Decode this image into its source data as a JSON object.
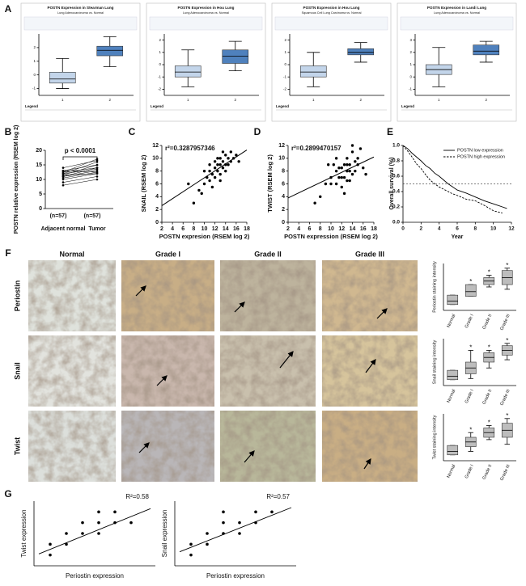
{
  "panel_labels": [
    "A",
    "B",
    "C",
    "D",
    "E",
    "F",
    "G"
  ],
  "panel_a": [
    {
      "title": "POSTN Expression in Stearman Lung",
      "subtitle": "Lung Adenocarcinoma vs. Normal",
      "categories": [
        "1",
        "2"
      ],
      "ylim": [
        -1.5,
        3
      ],
      "yticks": [
        -1,
        0,
        1,
        2
      ],
      "boxes": [
        [
          -1.0,
          -0.6,
          -0.3,
          0.2,
          1.2
        ],
        [
          0.6,
          1.4,
          1.8,
          2.1,
          2.8
        ]
      ],
      "legend": "Legend"
    },
    {
      "title": "POSTN Expression in Hou Lung",
      "subtitle": "Lung Adenocarcinoma vs. Normal",
      "categories": [
        "1",
        "2"
      ],
      "ylim": [
        -2.5,
        2.5
      ],
      "yticks": [
        -2,
        -1,
        0,
        1,
        2
      ],
      "boxes": [
        [
          -1.8,
          -1.0,
          -0.6,
          -0.1,
          1.2
        ],
        [
          -0.5,
          0.1,
          0.7,
          1.2,
          1.9
        ]
      ],
      "legend": "Legend"
    },
    {
      "title": "POSTN Expression in Hou Lung",
      "subtitle": "Squamous Cell Lung Carcinoma vs. Normal",
      "categories": [
        "1",
        "2"
      ],
      "ylim": [
        -2.5,
        2.5
      ],
      "yticks": [
        -2,
        -1,
        0,
        1,
        2
      ],
      "boxes": [
        [
          -1.8,
          -1.0,
          -0.6,
          -0.1,
          1.0
        ],
        [
          0.2,
          0.8,
          1.0,
          1.3,
          1.8
        ]
      ],
      "legend": "Legend"
    },
    {
      "title": "POSTN Expression in Landi Lung",
      "subtitle": "Lung Adenocarcinoma vs. Normal",
      "categories": [
        "1",
        "2"
      ],
      "ylim": [
        -1.5,
        3.5
      ],
      "yticks": [
        -1,
        0,
        1,
        2,
        3
      ],
      "boxes": [
        [
          -0.8,
          0.2,
          0.6,
          1.0,
          2.4
        ],
        [
          1.2,
          1.8,
          2.1,
          2.6,
          2.9
        ]
      ],
      "legend": "Legend"
    }
  ],
  "panel_b": {
    "annotation": "p < 0.0001",
    "ylabel": "POSTN relative expression (RSEM log 2)",
    "categories": [
      "Adjacent normal",
      "Tumor"
    ],
    "counts": [
      "(n=57)",
      "(n=57)"
    ],
    "ylim": [
      0,
      20
    ],
    "yticks": [
      0,
      5,
      10,
      15,
      20
    ],
    "normal": [
      9,
      10,
      10.5,
      11,
      11,
      11.5,
      11.5,
      12,
      12,
      12.5,
      12.5,
      13,
      13,
      14,
      8
    ],
    "tumor": [
      11,
      12,
      12.5,
      13,
      14,
      12,
      15,
      13.5,
      16,
      14,
      17,
      15,
      12.5,
      16.5,
      10
    ]
  },
  "panel_c": {
    "annotation": "r²=0.3287957346",
    "xlabel": "POSTN expresion (RSEM log 2)",
    "ylabel": "SNAIL (RSEM log 2)",
    "xlim": [
      2,
      18
    ],
    "ylim": [
      0,
      12
    ],
    "xticks": [
      2,
      4,
      6,
      8,
      10,
      12,
      14,
      16,
      18
    ],
    "yticks": [
      0,
      2,
      4,
      6,
      8,
      10,
      12
    ],
    "x": [
      8,
      9,
      10,
      10.5,
      11,
      11,
      11.5,
      12,
      12,
      12.5,
      12.5,
      13,
      13,
      13,
      13.5,
      13.5,
      14,
      14,
      14.5,
      14.5,
      15,
      15,
      15.5,
      16,
      9.5,
      10,
      11,
      12,
      13,
      14,
      11.5,
      12.5,
      13.5,
      7,
      16.5
    ],
    "y": [
      3,
      5,
      6,
      7,
      6.5,
      8,
      7.5,
      7,
      8.5,
      8,
      9,
      7.5,
      9,
      10,
      8.5,
      9.5,
      9,
      10.5,
      9,
      10,
      9.5,
      11,
      10,
      10.5,
      4.5,
      8,
      9,
      9.5,
      6.5,
      8,
      5.5,
      10,
      11,
      6,
      9.5
    ],
    "fit": [
      [
        2,
        2.6
      ],
      [
        18,
        11.3
      ]
    ]
  },
  "panel_d": {
    "annotation": "r²=0.2899470157",
    "xlabel": "POSTN expression (RSEM log 2)",
    "ylabel": "TWIST (RSEM log 2)",
    "xlim": [
      2,
      18
    ],
    "ylim": [
      0,
      12
    ],
    "xticks": [
      2,
      4,
      6,
      8,
      10,
      12,
      14,
      16,
      18
    ],
    "yticks": [
      0,
      2,
      4,
      6,
      8,
      10,
      12
    ],
    "x": [
      8,
      9,
      10,
      10.5,
      11,
      11,
      11.5,
      12,
      12,
      12.5,
      12.5,
      13,
      13,
      13,
      13.5,
      13.5,
      14,
      14,
      14.5,
      14.5,
      15,
      15,
      15.5,
      16,
      9.5,
      10,
      11,
      12,
      13,
      14,
      11.5,
      12.5,
      13.5,
      7,
      16.5
    ],
    "y": [
      4,
      6,
      7,
      9,
      6,
      8,
      7,
      8.5,
      5.5,
      9,
      7,
      8,
      10,
      6.5,
      9,
      8,
      11,
      7.5,
      9.5,
      8,
      10,
      9,
      11.5,
      8.5,
      9,
      6,
      10,
      7,
      9,
      12,
      8.5,
      4.5,
      6.5,
      3,
      7.5
    ],
    "fit": [
      [
        2,
        3.8
      ],
      [
        18,
        10.2
      ]
    ]
  },
  "panel_e": {
    "xlabel": "Year",
    "ylabel": "Overall survival (%)",
    "xlim": [
      0,
      12
    ],
    "ylim": [
      0,
      1
    ],
    "xticks": [
      0,
      2,
      4,
      6,
      8,
      10,
      12
    ],
    "yticks": [
      {
        "value": 0,
        "label": "0.0"
      },
      0.2,
      0.4,
      0.6,
      0.8,
      {
        "value": 1,
        "label": "1.0"
      }
    ],
    "reference_line": 0.5,
    "series": [
      {
        "name": "POSTN low expression",
        "x": [
          0,
          0.5,
          1,
          1.5,
          2,
          2.5,
          3,
          3.5,
          4,
          4.5,
          5,
          5.5,
          6,
          7,
          8,
          9,
          10,
          11,
          11.5
        ],
        "values": [
          1,
          0.96,
          0.9,
          0.85,
          0.8,
          0.74,
          0.7,
          0.64,
          0.6,
          0.55,
          0.5,
          0.46,
          0.42,
          0.38,
          0.33,
          0.28,
          0.24,
          0.2,
          0.18
        ]
      },
      {
        "name": "POSTN high expression",
        "x": [
          0,
          0.5,
          1,
          1.5,
          2,
          2.5,
          3,
          3.5,
          4,
          4.5,
          5,
          5.5,
          6,
          7,
          8,
          9,
          10,
          11
        ],
        "values": [
          1,
          0.93,
          0.85,
          0.76,
          0.7,
          0.62,
          0.55,
          0.5,
          0.46,
          0.43,
          0.4,
          0.37,
          0.35,
          0.3,
          0.28,
          0.22,
          0.15,
          0.12
        ]
      }
    ]
  },
  "panel_f": {
    "columns": [
      "Normal",
      "Grade I",
      "Grade II",
      "Grade III"
    ],
    "ylim": [
      0,
      4
    ],
    "rows": [
      {
        "name": "Periostin",
        "ylabel": "Periostin staining intensity",
        "boxes": [
          [
            0.5,
            0.5,
            0.8,
            1.3,
            1.3
          ],
          [
            1.2,
            1.2,
            1.6,
            2.2,
            2.2
          ],
          [
            2.0,
            2.2,
            2.5,
            2.8,
            3.0
          ],
          [
            1.8,
            2.2,
            2.8,
            3.4,
            3.6
          ]
        ],
        "significance": [
          null,
          "*",
          "*",
          "*"
        ]
      },
      {
        "name": "Snail",
        "ylabel": "Snail staining intensity",
        "boxes": [
          [
            0.5,
            0.5,
            0.8,
            1.3,
            1.3
          ],
          [
            0.6,
            1.0,
            1.5,
            2.0,
            3.0
          ],
          [
            1.5,
            2.0,
            2.4,
            2.8,
            3.0
          ],
          [
            2.2,
            2.6,
            3.0,
            3.4,
            3.6
          ]
        ],
        "significance": [
          null,
          "*",
          "*",
          "*"
        ]
      },
      {
        "name": "Twist",
        "ylabel": "Twist staining intensity",
        "boxes": [
          [
            0.5,
            0.5,
            0.8,
            1.3,
            1.3
          ],
          [
            0.8,
            1.2,
            1.6,
            2.0,
            2.4
          ],
          [
            1.8,
            2.0,
            2.4,
            2.8,
            3.0
          ],
          [
            1.4,
            2.0,
            2.6,
            3.2,
            3.6
          ]
        ],
        "significance": [
          null,
          "*",
          "*",
          "*"
        ]
      }
    ]
  },
  "panel_g": [
    {
      "annotation": "R²=0.58",
      "xlabel": "Periostin expression",
      "ylabel": "Twist expression",
      "xlim": [
        0,
        7.5
      ],
      "ylim": [
        0,
        6
      ],
      "x": [
        1,
        1,
        2,
        2,
        3,
        3,
        4,
        4,
        4,
        5,
        5,
        6
      ],
      "y": [
        1,
        2,
        2,
        3,
        3,
        4,
        3,
        4,
        5,
        4,
        5,
        4
      ],
      "fit": [
        [
          0.3,
          1.1
        ],
        [
          7.2,
          5.3
        ]
      ]
    },
    {
      "annotation": "R²=0.57",
      "xlabel": "Periostin expression",
      "ylabel": "Snail expression",
      "xlim": [
        0,
        7.5
      ],
      "ylim": [
        0,
        6
      ],
      "x": [
        1,
        1,
        2,
        2,
        3,
        3,
        3,
        4,
        4,
        5,
        5,
        6
      ],
      "y": [
        1,
        2,
        3,
        2,
        3,
        4,
        5,
        3,
        4,
        4,
        5,
        5
      ],
      "fit": [
        [
          0.3,
          1.3
        ],
        [
          7.2,
          5.4
        ]
      ]
    }
  ]
}
